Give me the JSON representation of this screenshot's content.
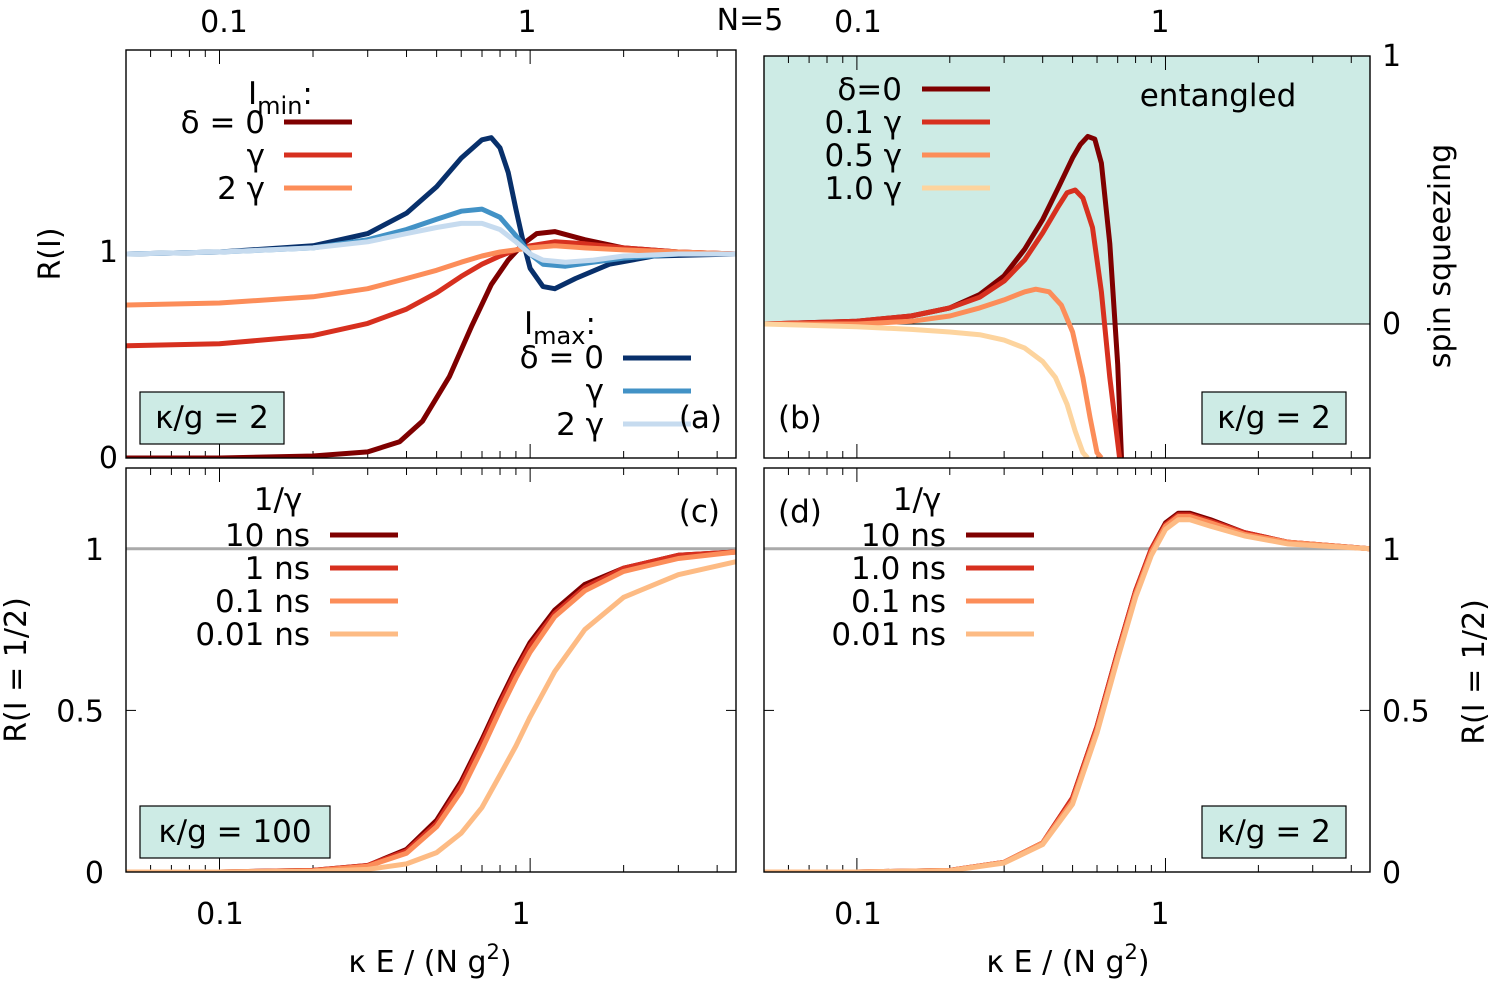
{
  "figure": {
    "title": "N=5",
    "xlabel_main": "κ E / (N g",
    "xlabel_sup": "2",
    "xlabel_end": ")",
    "top_ticks": [
      "0.1",
      "1"
    ],
    "bottom_ticks": [
      "0.1",
      "1"
    ]
  },
  "chart_data": [
    {
      "panel": "(a)",
      "type": "line",
      "xscale": "log",
      "xlim": [
        0.05,
        4.6
      ],
      "ylim": [
        0,
        2.0
      ],
      "ylabel": "R(I)",
      "yticks": [
        "0",
        "1"
      ],
      "ytick_values": [
        0,
        1
      ],
      "inset": "κ/g = 2",
      "legend_groups": [
        {
          "heading_main": "I",
          "heading_sub": "min",
          "heading_end": ":",
          "labels": [
            "δ = 0",
            "γ",
            "2 γ"
          ]
        },
        {
          "heading_main": "I",
          "heading_sub": "max",
          "heading_end": ":",
          "labels": [
            "δ = 0",
            "γ",
            "2 γ"
          ]
        }
      ],
      "series": [
        {
          "name": "δ = 0",
          "group": "I_min",
          "color": "#7f0000",
          "x": [
            0.05,
            0.1,
            0.2,
            0.3,
            0.38,
            0.45,
            0.55,
            0.65,
            0.75,
            0.85,
            0.95,
            1.05,
            1.2,
            1.5,
            2.0,
            3.0,
            4.6
          ],
          "y": [
            0,
            0,
            0.01,
            0.03,
            0.08,
            0.18,
            0.4,
            0.65,
            0.85,
            0.97,
            1.05,
            1.1,
            1.11,
            1.07,
            1.03,
            1.01,
            1.0
          ]
        },
        {
          "name": "γ",
          "group": "I_min",
          "color": "#d7301f",
          "x": [
            0.05,
            0.1,
            0.2,
            0.3,
            0.4,
            0.5,
            0.6,
            0.7,
            0.8,
            0.9,
            1.0,
            1.2,
            1.5,
            2.0,
            3.0,
            4.6
          ],
          "y": [
            0.55,
            0.56,
            0.6,
            0.66,
            0.73,
            0.81,
            0.89,
            0.95,
            0.99,
            1.02,
            1.04,
            1.06,
            1.05,
            1.03,
            1.01,
            1.0
          ]
        },
        {
          "name": "2 γ",
          "group": "I_min",
          "color": "#fc8d59",
          "x": [
            0.05,
            0.1,
            0.2,
            0.3,
            0.4,
            0.5,
            0.6,
            0.7,
            0.8,
            0.9,
            1.0,
            1.2,
            1.5,
            2.0,
            3.0,
            4.6
          ],
          "y": [
            0.75,
            0.76,
            0.79,
            0.83,
            0.88,
            0.92,
            0.96,
            0.99,
            1.01,
            1.02,
            1.03,
            1.04,
            1.03,
            1.02,
            1.01,
            1.0
          ]
        },
        {
          "name": "δ = 0",
          "group": "I_max",
          "color": "#08306b",
          "x": [
            0.05,
            0.1,
            0.2,
            0.3,
            0.4,
            0.5,
            0.6,
            0.7,
            0.75,
            0.8,
            0.85,
            0.9,
            0.95,
            1.0,
            1.1,
            1.2,
            1.4,
            1.8,
            2.5,
            4.6
          ],
          "y": [
            1.0,
            1.01,
            1.04,
            1.1,
            1.2,
            1.33,
            1.47,
            1.56,
            1.57,
            1.52,
            1.4,
            1.22,
            1.06,
            0.93,
            0.84,
            0.83,
            0.88,
            0.95,
            0.99,
            1.0
          ]
        },
        {
          "name": "γ",
          "group": "I_max",
          "color": "#4292c6",
          "x": [
            0.05,
            0.1,
            0.2,
            0.3,
            0.4,
            0.5,
            0.6,
            0.7,
            0.8,
            0.9,
            1.0,
            1.1,
            1.3,
            1.6,
            2.0,
            3.0,
            4.6
          ],
          "y": [
            1.0,
            1.01,
            1.03,
            1.07,
            1.12,
            1.17,
            1.21,
            1.22,
            1.18,
            1.09,
            1.0,
            0.95,
            0.94,
            0.96,
            0.98,
            1.0,
            1.0
          ]
        },
        {
          "name": "2 γ",
          "group": "I_max",
          "color": "#c6dbef",
          "x": [
            0.05,
            0.1,
            0.2,
            0.3,
            0.4,
            0.5,
            0.6,
            0.7,
            0.8,
            0.9,
            1.0,
            1.1,
            1.3,
            1.6,
            2.0,
            3.0,
            4.6
          ],
          "y": [
            1.0,
            1.01,
            1.03,
            1.06,
            1.1,
            1.13,
            1.15,
            1.15,
            1.12,
            1.06,
            1.0,
            0.97,
            0.96,
            0.97,
            0.99,
            1.0,
            1.0
          ]
        }
      ]
    },
    {
      "panel": "(b)",
      "type": "line",
      "xscale": "log",
      "xlim": [
        0.05,
        4.6
      ],
      "ylim": [
        -0.5,
        1.0
      ],
      "ylabel": "spin squeezing",
      "yticks": [
        "0",
        "1"
      ],
      "ytick_values": [
        0,
        1
      ],
      "inset": "κ/g = 2",
      "region_label": "entangled",
      "region_color": "#cdebe5",
      "region_range": [
        0,
        1
      ],
      "series": [
        {
          "name": "δ=0",
          "color": "#7f0000",
          "x": [
            0.05,
            0.1,
            0.15,
            0.2,
            0.25,
            0.3,
            0.35,
            0.4,
            0.45,
            0.5,
            0.53,
            0.56,
            0.59,
            0.62,
            0.66,
            0.7,
            0.72
          ],
          "y": [
            0.0,
            0.01,
            0.03,
            0.06,
            0.11,
            0.18,
            0.28,
            0.39,
            0.51,
            0.62,
            0.67,
            0.7,
            0.69,
            0.6,
            0.3,
            -0.15,
            -0.5
          ]
        },
        {
          "name": "0.1 γ",
          "color": "#d7301f",
          "x": [
            0.05,
            0.1,
            0.15,
            0.2,
            0.25,
            0.3,
            0.35,
            0.4,
            0.45,
            0.48,
            0.51,
            0.54,
            0.58,
            0.62,
            0.66,
            0.71
          ],
          "y": [
            0.0,
            0.01,
            0.03,
            0.06,
            0.1,
            0.16,
            0.24,
            0.34,
            0.44,
            0.49,
            0.5,
            0.47,
            0.36,
            0.12,
            -0.2,
            -0.5
          ]
        },
        {
          "name": "0.5 γ",
          "color": "#fc8d59",
          "x": [
            0.05,
            0.1,
            0.15,
            0.2,
            0.25,
            0.3,
            0.35,
            0.38,
            0.42,
            0.46,
            0.5,
            0.54,
            0.57,
            0.6,
            0.62
          ],
          "y": [
            0.0,
            0.0,
            0.01,
            0.03,
            0.06,
            0.09,
            0.12,
            0.13,
            0.12,
            0.07,
            -0.03,
            -0.2,
            -0.35,
            -0.48,
            -0.5
          ]
        },
        {
          "name": "1.0 γ",
          "color": "#fdd49e",
          "x": [
            0.05,
            0.1,
            0.15,
            0.2,
            0.25,
            0.3,
            0.35,
            0.4,
            0.44,
            0.48,
            0.51,
            0.54,
            0.56
          ],
          "y": [
            0.0,
            -0.01,
            -0.02,
            -0.03,
            -0.04,
            -0.06,
            -0.09,
            -0.14,
            -0.2,
            -0.3,
            -0.4,
            -0.48,
            -0.5
          ]
        }
      ]
    },
    {
      "panel": "(c)",
      "type": "line",
      "xscale": "log",
      "xlim": [
        0.05,
        4.6
      ],
      "ylim": [
        0,
        1.25
      ],
      "ylabel": "R(I = 1/2)",
      "yticks": [
        "0",
        "0.5",
        "1"
      ],
      "ytick_values": [
        0,
        0.5,
        1
      ],
      "inset": "κ/g = 100",
      "reference_line": 1,
      "legend_heading": "1/γ",
      "series": [
        {
          "name": "10 ns",
          "color": "#7f0000",
          "x": [
            0.05,
            0.1,
            0.2,
            0.3,
            0.4,
            0.5,
            0.6,
            0.7,
            0.8,
            0.9,
            1.0,
            1.2,
            1.5,
            2.0,
            3.0,
            4.6
          ],
          "y": [
            0,
            0,
            0.005,
            0.02,
            0.07,
            0.16,
            0.28,
            0.41,
            0.53,
            0.63,
            0.71,
            0.81,
            0.89,
            0.94,
            0.98,
            0.99
          ]
        },
        {
          "name": "1 ns",
          "color": "#d7301f",
          "x": [
            0.05,
            0.1,
            0.2,
            0.3,
            0.4,
            0.5,
            0.6,
            0.7,
            0.8,
            0.9,
            1.0,
            1.2,
            1.5,
            2.0,
            3.0,
            4.6
          ],
          "y": [
            0,
            0,
            0.005,
            0.02,
            0.065,
            0.15,
            0.27,
            0.4,
            0.52,
            0.62,
            0.7,
            0.8,
            0.88,
            0.94,
            0.98,
            0.99
          ]
        },
        {
          "name": "0.1 ns",
          "color": "#fc8d59",
          "x": [
            0.05,
            0.1,
            0.2,
            0.3,
            0.4,
            0.5,
            0.6,
            0.7,
            0.8,
            0.9,
            1.0,
            1.2,
            1.5,
            2.0,
            3.0,
            4.6
          ],
          "y": [
            0,
            0,
            0.004,
            0.018,
            0.058,
            0.14,
            0.25,
            0.38,
            0.5,
            0.6,
            0.68,
            0.79,
            0.87,
            0.93,
            0.97,
            0.99
          ]
        },
        {
          "name": "0.01 ns",
          "color": "#fdbb84",
          "x": [
            0.05,
            0.1,
            0.2,
            0.3,
            0.4,
            0.5,
            0.6,
            0.7,
            0.8,
            0.9,
            1.0,
            1.2,
            1.5,
            2.0,
            3.0,
            4.6
          ],
          "y": [
            0,
            0,
            0.002,
            0.008,
            0.025,
            0.06,
            0.12,
            0.2,
            0.3,
            0.39,
            0.48,
            0.62,
            0.75,
            0.85,
            0.92,
            0.96
          ]
        }
      ]
    },
    {
      "panel": "(d)",
      "type": "line",
      "xscale": "log",
      "xlim": [
        0.05,
        4.6
      ],
      "ylim": [
        0,
        1.25
      ],
      "ylabel": "R(I = 1/2)",
      "yticks": [
        "0",
        "0.5",
        "1"
      ],
      "ytick_values": [
        0,
        0.5,
        1
      ],
      "inset": "κ/g = 2",
      "reference_line": 1,
      "legend_heading": "1/γ",
      "series": [
        {
          "name": "10 ns",
          "color": "#7f0000",
          "x": [
            0.05,
            0.1,
            0.2,
            0.3,
            0.4,
            0.5,
            0.6,
            0.7,
            0.8,
            0.9,
            1.0,
            1.1,
            1.2,
            1.4,
            1.8,
            2.5,
            4.6
          ],
          "y": [
            0,
            0,
            0.005,
            0.03,
            0.09,
            0.23,
            0.45,
            0.68,
            0.87,
            1.0,
            1.08,
            1.11,
            1.11,
            1.09,
            1.05,
            1.02,
            1.0
          ]
        },
        {
          "name": "1.0 ns",
          "color": "#d7301f",
          "x": [
            0.05,
            0.1,
            0.2,
            0.3,
            0.4,
            0.5,
            0.6,
            0.7,
            0.8,
            0.9,
            1.0,
            1.1,
            1.2,
            1.4,
            1.8,
            2.5,
            4.6
          ],
          "y": [
            0,
            0,
            0.005,
            0.03,
            0.09,
            0.23,
            0.45,
            0.68,
            0.87,
            1.0,
            1.075,
            1.105,
            1.105,
            1.085,
            1.05,
            1.02,
            1.0
          ]
        },
        {
          "name": "0.1 ns",
          "color": "#fc8d59",
          "x": [
            0.05,
            0.1,
            0.2,
            0.3,
            0.4,
            0.5,
            0.6,
            0.7,
            0.8,
            0.9,
            1.0,
            1.1,
            1.2,
            1.4,
            1.8,
            2.5,
            4.6
          ],
          "y": [
            0,
            0,
            0.005,
            0.03,
            0.09,
            0.22,
            0.44,
            0.67,
            0.86,
            0.99,
            1.07,
            1.1,
            1.1,
            1.08,
            1.045,
            1.02,
            1.0
          ]
        },
        {
          "name": "0.01 ns",
          "color": "#fdbb84",
          "x": [
            0.05,
            0.1,
            0.2,
            0.3,
            0.4,
            0.5,
            0.6,
            0.7,
            0.8,
            0.9,
            1.0,
            1.1,
            1.2,
            1.4,
            1.8,
            2.5,
            4.6
          ],
          "y": [
            0,
            0,
            0.004,
            0.028,
            0.085,
            0.21,
            0.43,
            0.66,
            0.85,
            0.98,
            1.06,
            1.09,
            1.09,
            1.07,
            1.04,
            1.015,
            1.0
          ]
        }
      ]
    }
  ]
}
